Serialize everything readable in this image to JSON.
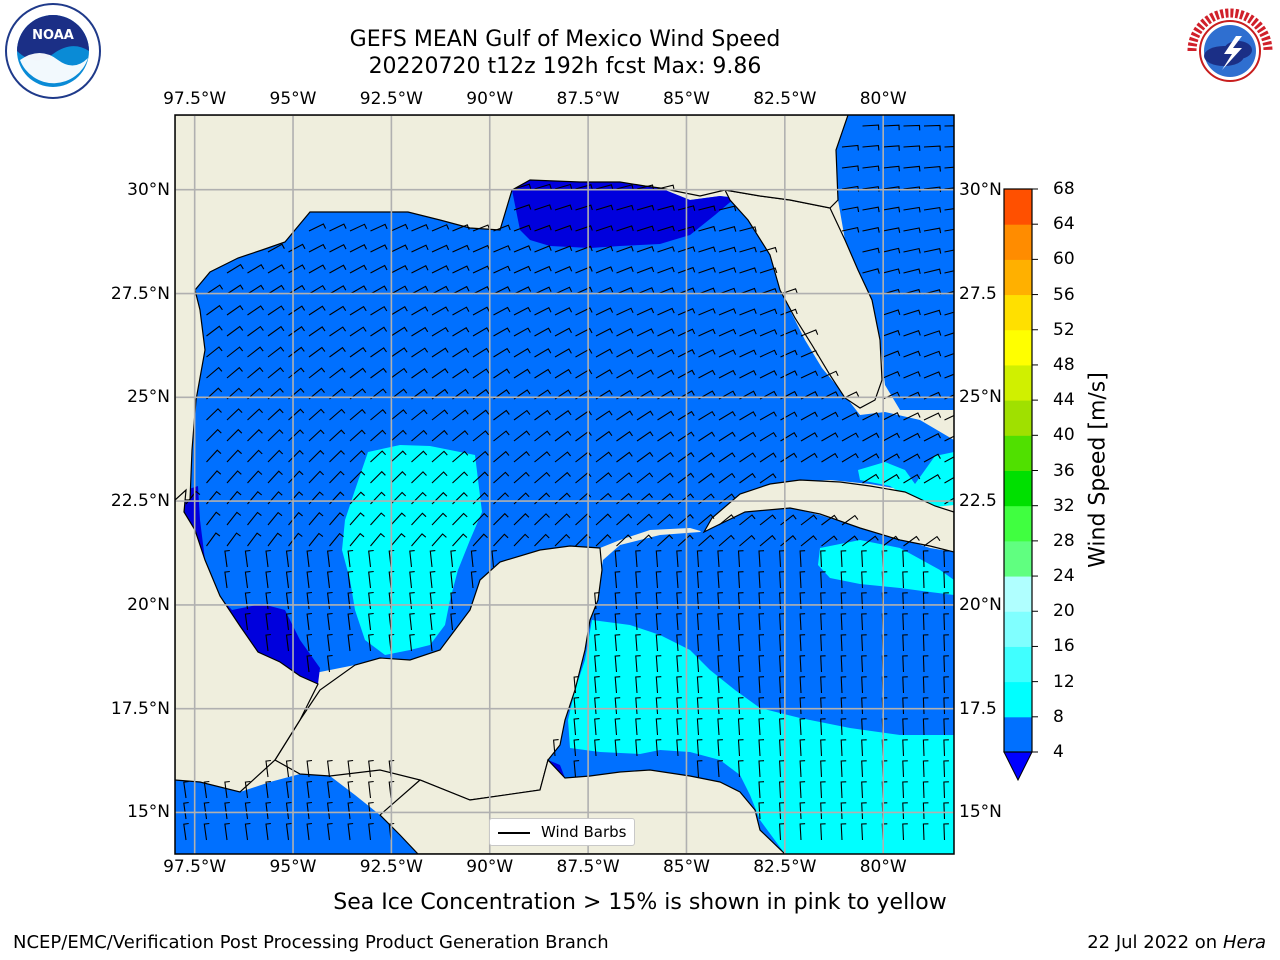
{
  "title": {
    "line1": "GEFS MEAN Gulf of Mexico Wind Speed",
    "line2": "20220720 t12z 192h fcst   Max: 9.86"
  },
  "axes": {
    "lon_labels": [
      "97.5°W",
      "95°W",
      "92.5°W",
      "90°W",
      "87.5°W",
      "85°W",
      "82.5°W",
      "80°W"
    ],
    "lon_values": [
      -97.5,
      -95,
      -92.5,
      -90,
      -87.5,
      -85,
      -82.5,
      -80
    ],
    "lat_labels_left": [
      "30°N",
      "27.5°N",
      "25°N",
      "22.5°N",
      "20°N",
      "17.5°N",
      "15°N"
    ],
    "lat_labels_right": [
      "30°N",
      "27.5",
      "25°N",
      "22.5",
      "20°N",
      "17.5",
      "15°N"
    ],
    "lat_values": [
      30,
      27.5,
      25,
      22.5,
      20,
      17.5,
      15
    ],
    "lon_range": [
      -98,
      -78.2
    ],
    "lat_range": [
      14,
      31.8
    ],
    "grid": true
  },
  "colorbar": {
    "title": "Wind Speed [m/s]",
    "ticks": [
      "4",
      "8",
      "12",
      "16",
      "20",
      "24",
      "28",
      "32",
      "36",
      "40",
      "44",
      "48",
      "52",
      "56",
      "60",
      "64",
      "68"
    ],
    "colors": [
      "#0070ff",
      "#00ffff",
      "#40ffff",
      "#80ffff",
      "#b0ffff",
      "#60ff80",
      "#40ff40",
      "#00e000",
      "#50e000",
      "#a0e000",
      "#d0f000",
      "#ffff00",
      "#ffe000",
      "#ffb000",
      "#ff8c00",
      "#ff5000",
      "#ff2800",
      "#ff0000"
    ],
    "extend_color": "#0000ff",
    "range": [
      4,
      68
    ]
  },
  "legend": {
    "label": "Wind Barbs"
  },
  "note": "Sea Ice Concentration > 15% is shown in pink to yellow",
  "credit": "NCEP/EMC/Verification Post Processing Product Generation Branch",
  "date": {
    "text": "22 Jul 2022 on ",
    "machine": "Hera"
  },
  "logos": {
    "left": "NOAA",
    "right": "NATIONAL WEATHER SERVICE"
  },
  "colors": {
    "land": "#efeedd",
    "water_low": "#0000dd",
    "water_4_8": "#0070ff",
    "water_8_12": "#00ffff",
    "grid": "#b0b0b0"
  }
}
